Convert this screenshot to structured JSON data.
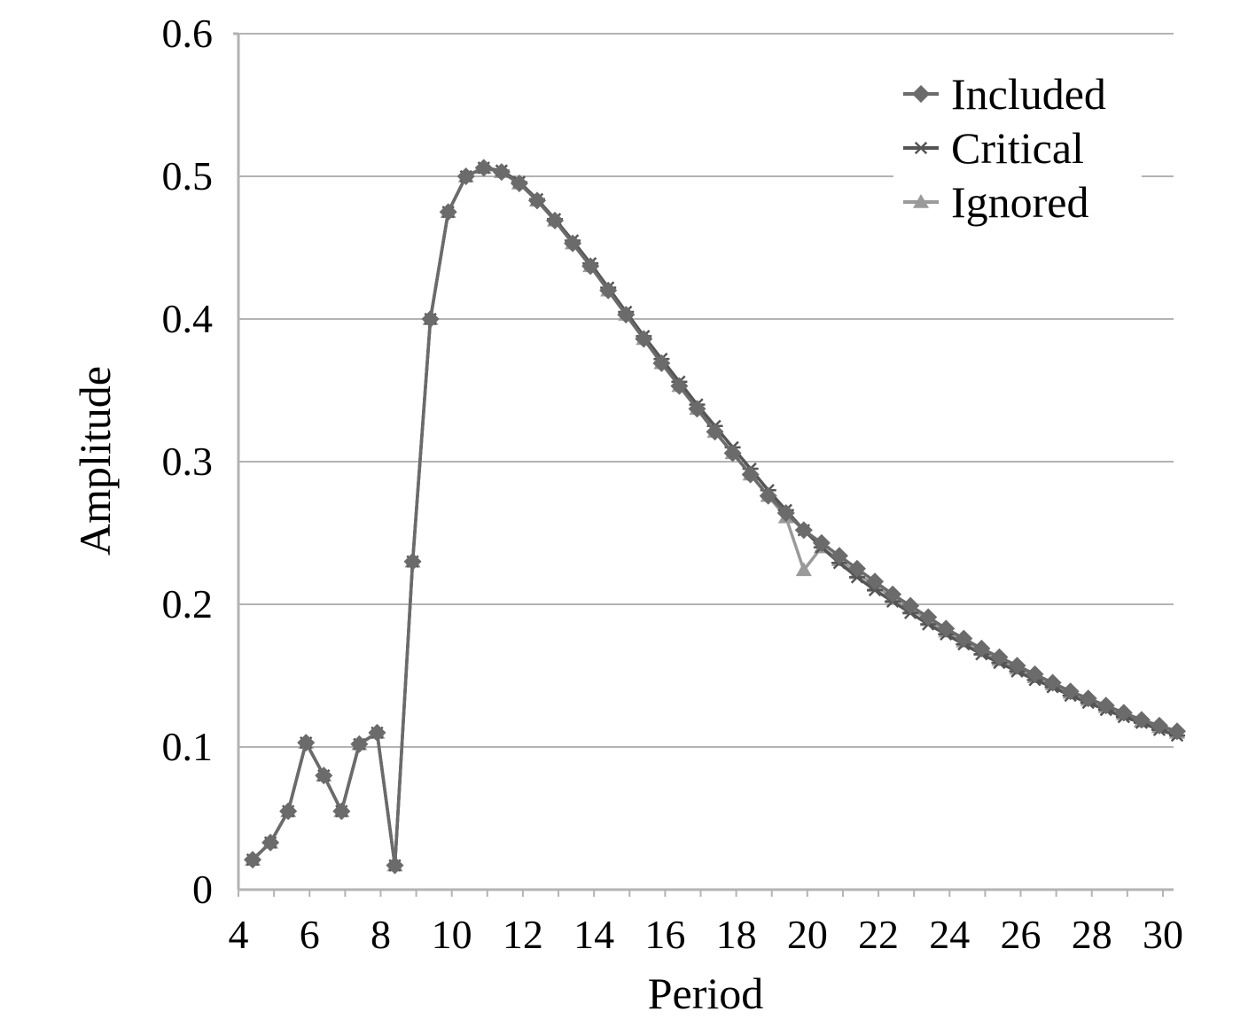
{
  "chart_data": {
    "type": "line",
    "xlabel": "Period",
    "ylabel": "Amplitude",
    "xlim": [
      4,
      30.3
    ],
    "ylim": [
      0,
      0.6
    ],
    "xticks": [
      "4",
      "6",
      "8",
      "10",
      "12",
      "14",
      "16",
      "18",
      "20",
      "22",
      "24",
      "26",
      "28",
      "30"
    ],
    "yticks": [
      "0",
      "0.1",
      "0.2",
      "0.3",
      "0.4",
      "0.5",
      "0.6"
    ],
    "grid": "horizontal",
    "legend_position": "top-right",
    "legend": [
      "Included",
      "Critical",
      "Ignored"
    ],
    "x": [
      4.4,
      4.9,
      5.4,
      5.9,
      6.4,
      6.9,
      7.4,
      7.9,
      8.4,
      8.9,
      9.4,
      9.9,
      10.4,
      10.9,
      11.4,
      11.9,
      12.4,
      12.9,
      13.4,
      13.9,
      14.4,
      14.9,
      15.4,
      15.9,
      16.4,
      16.9,
      17.4,
      17.9,
      18.4,
      18.9,
      19.4,
      19.9,
      20.4,
      20.9,
      21.4,
      21.9,
      22.4,
      22.9,
      23.4,
      23.9,
      24.4,
      24.9,
      25.4,
      25.9,
      26.4,
      26.9,
      27.4,
      27.9,
      28.4,
      28.9,
      29.4,
      29.9,
      30.4
    ],
    "series": [
      {
        "name": "Included",
        "marker": "diamond",
        "values": [
          0.021,
          0.033,
          0.055,
          0.103,
          0.08,
          0.055,
          0.102,
          0.11,
          0.017,
          0.23,
          0.4,
          0.475,
          0.5,
          0.506,
          0.503,
          0.495,
          0.483,
          0.469,
          0.453,
          0.437,
          0.42,
          0.403,
          0.386,
          0.369,
          0.353,
          0.337,
          0.321,
          0.306,
          0.291,
          0.276,
          0.264,
          0.252,
          0.243,
          0.234,
          0.225,
          0.216,
          0.207,
          0.199,
          0.191,
          0.183,
          0.176,
          0.169,
          0.163,
          0.157,
          0.151,
          0.145,
          0.139,
          0.134,
          0.129,
          0.124,
          0.119,
          0.115,
          0.111
        ]
      },
      {
        "name": "Critical",
        "marker": "asterisk",
        "values": [
          0.021,
          0.033,
          0.055,
          0.103,
          0.08,
          0.055,
          0.102,
          0.11,
          0.017,
          0.23,
          0.4,
          0.475,
          0.5,
          0.506,
          0.504,
          0.496,
          0.484,
          0.47,
          0.455,
          0.439,
          0.422,
          0.405,
          0.388,
          0.372,
          0.356,
          0.34,
          0.325,
          0.31,
          0.295,
          0.28,
          0.266,
          0.252,
          0.24,
          0.229,
          0.219,
          0.21,
          0.202,
          0.194,
          0.186,
          0.179,
          0.172,
          0.165,
          0.159,
          0.153,
          0.147,
          0.142,
          0.136,
          0.131,
          0.126,
          0.121,
          0.117,
          0.112,
          0.108
        ]
      },
      {
        "name": "Ignored",
        "marker": "triangle",
        "values": [
          0.021,
          0.033,
          0.055,
          0.103,
          0.08,
          0.055,
          0.102,
          0.11,
          0.017,
          0.23,
          0.4,
          0.475,
          0.5,
          0.506,
          0.503,
          0.495,
          0.483,
          0.469,
          0.453,
          0.437,
          0.42,
          0.403,
          0.386,
          0.369,
          0.353,
          0.337,
          0.321,
          0.306,
          0.291,
          0.276,
          0.261,
          0.224,
          0.24,
          0.231,
          0.222,
          0.213,
          0.205,
          0.197,
          0.189,
          0.181,
          0.174,
          0.168,
          0.161,
          0.155,
          0.149,
          0.144,
          0.138,
          0.133,
          0.128,
          0.123,
          0.118,
          0.114,
          0.11
        ]
      }
    ],
    "colors": {
      "Included": "#6b6b6b",
      "Critical": "#555555",
      "Ignored": "#9a9a9a",
      "grid": "#b3b3b3",
      "axis": "#b3b3b3"
    }
  }
}
